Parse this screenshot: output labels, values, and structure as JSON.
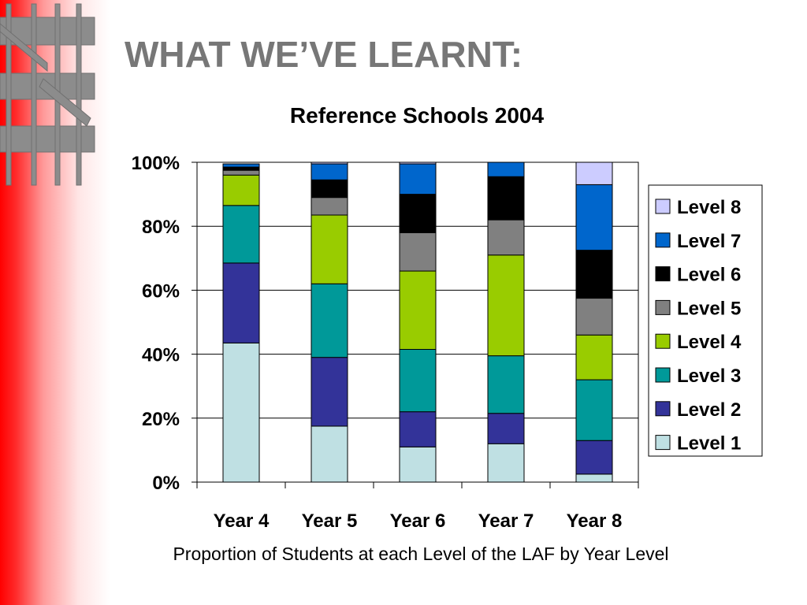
{
  "slide": {
    "title": "WHAT WE’VE LEARNT:",
    "caption": "Proportion of Students at each Level of the LAF by Year Level"
  },
  "colors": {
    "sidebar_red": "#ff0000",
    "title_gray": "#777777",
    "decoration_gray": "#8c8c8c"
  },
  "chart_data": {
    "type": "bar",
    "stacked": true,
    "title": "Reference Schools 2004",
    "categories": [
      "Year 4",
      "Year 5",
      "Year 6",
      "Year 7",
      "Year 8"
    ],
    "ylim": [
      0,
      100
    ],
    "yticks": [
      "0%",
      "20%",
      "40%",
      "60%",
      "80%",
      "100%"
    ],
    "ytick_values": [
      0,
      20,
      40,
      60,
      80,
      100
    ],
    "grid": true,
    "legend_position": "right",
    "series": [
      {
        "name": "Level 1",
        "color": "#bfe0e3",
        "values": [
          43.5,
          17.5,
          11,
          12,
          2.5
        ]
      },
      {
        "name": "Level 2",
        "color": "#333399",
        "values": [
          25,
          21.5,
          11,
          9.5,
          10.5
        ]
      },
      {
        "name": "Level 3",
        "color": "#009999",
        "values": [
          18,
          23,
          19.5,
          18,
          19
        ]
      },
      {
        "name": "Level 4",
        "color": "#99cc00",
        "values": [
          9.5,
          21.5,
          24.5,
          31.5,
          14
        ]
      },
      {
        "name": "Level 5",
        "color": "#808080",
        "values": [
          1.5,
          5.5,
          12,
          11,
          11.5
        ]
      },
      {
        "name": "Level 6",
        "color": "#000000",
        "values": [
          1,
          5.5,
          12,
          13.5,
          15
        ]
      },
      {
        "name": "Level 7",
        "color": "#0066cc",
        "values": [
          1,
          5,
          9.5,
          4.5,
          20.5
        ]
      },
      {
        "name": "Level 8",
        "color": "#ccccff",
        "values": [
          0,
          0.5,
          0.5,
          0,
          7
        ]
      }
    ]
  }
}
